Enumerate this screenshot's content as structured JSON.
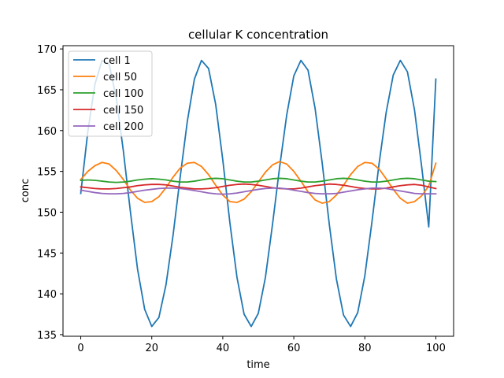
{
  "chart_data": {
    "type": "line",
    "title": "cellular K concentration",
    "xlabel": "time",
    "ylabel": "conc",
    "xlim": [
      -5,
      105
    ],
    "ylim": [
      134.8,
      170.4
    ],
    "xticks": [
      0,
      20,
      40,
      60,
      80,
      100
    ],
    "yticks": [
      135,
      140,
      145,
      150,
      155,
      160,
      165,
      170
    ],
    "grid": false,
    "legend_position": "top-left",
    "x": [
      0,
      2,
      4,
      6,
      8,
      10,
      12,
      14,
      16,
      18,
      20,
      22,
      24,
      26,
      28,
      30,
      32,
      34,
      36,
      38,
      40,
      42,
      44,
      46,
      48,
      50,
      52,
      54,
      56,
      58,
      60,
      62,
      64,
      66,
      68,
      70,
      72,
      74,
      76,
      78,
      80,
      82,
      84,
      86,
      88,
      90,
      92,
      94,
      96,
      98,
      100
    ],
    "series": [
      {
        "name": "cell 1",
        "color": "#1f77b4",
        "values": [
          152.3,
          159.9,
          165.7,
          168.6,
          168.1,
          164.0,
          157.5,
          150.0,
          143.0,
          138.1,
          136.0,
          137.1,
          141.1,
          147.2,
          154.3,
          161.1,
          166.3,
          168.6,
          167.6,
          163.2,
          156.4,
          148.7,
          142.0,
          137.5,
          136.0,
          137.6,
          142.0,
          148.5,
          155.5,
          161.9,
          166.7,
          168.6,
          167.4,
          162.7,
          156.0,
          148.5,
          141.8,
          137.4,
          136.0,
          137.7,
          142.2,
          148.8,
          155.9,
          162.2,
          166.8,
          168.6,
          167.2,
          162.5,
          155.6,
          148.2,
          166.3
        ]
      },
      {
        "name": "cell 50",
        "color": "#ff7f0e",
        "values": [
          154.0,
          155.0,
          155.7,
          156.1,
          155.9,
          155.1,
          154.0,
          152.7,
          151.7,
          151.2,
          151.3,
          151.9,
          153.0,
          154.3,
          155.4,
          156.0,
          156.1,
          155.6,
          154.6,
          153.3,
          152.1,
          151.3,
          151.2,
          151.6,
          152.5,
          153.7,
          154.9,
          155.8,
          156.2,
          155.9,
          155.0,
          153.8,
          152.5,
          151.5,
          151.1,
          151.3,
          152.1,
          153.3,
          154.6,
          155.6,
          156.1,
          156.0,
          155.3,
          154.1,
          152.8,
          151.7,
          151.1,
          151.3,
          152.0,
          153.2,
          156.0
        ]
      },
      {
        "name": "cell 100",
        "color": "#2ca02c",
        "values": [
          153.9,
          153.95,
          153.9,
          153.8,
          153.7,
          153.65,
          153.7,
          153.8,
          153.95,
          154.05,
          154.1,
          154.05,
          153.95,
          153.8,
          153.7,
          153.7,
          153.8,
          153.95,
          154.1,
          154.15,
          154.1,
          153.95,
          153.8,
          153.7,
          153.7,
          153.8,
          153.95,
          154.1,
          154.15,
          154.1,
          153.95,
          153.8,
          153.7,
          153.7,
          153.8,
          153.95,
          154.1,
          154.15,
          154.1,
          153.95,
          153.8,
          153.7,
          153.7,
          153.8,
          153.95,
          154.1,
          154.15,
          154.1,
          153.95,
          153.8,
          153.75
        ]
      },
      {
        "name": "cell 150",
        "color": "#d62728",
        "values": [
          153.1,
          153.0,
          152.9,
          152.85,
          152.85,
          152.9,
          153.0,
          153.1,
          153.25,
          153.35,
          153.4,
          153.4,
          153.35,
          153.2,
          153.05,
          152.95,
          152.85,
          152.85,
          152.9,
          153.0,
          153.15,
          153.3,
          153.4,
          153.45,
          153.4,
          153.3,
          153.15,
          153.0,
          152.9,
          152.85,
          152.85,
          152.95,
          153.1,
          153.25,
          153.35,
          153.45,
          153.4,
          153.3,
          153.15,
          153.0,
          152.9,
          152.85,
          152.85,
          152.95,
          153.1,
          153.25,
          153.35,
          153.4,
          153.3,
          153.1,
          152.9
        ]
      },
      {
        "name": "cell 200",
        "color": "#9467bd",
        "values": [
          152.7,
          152.55,
          152.4,
          152.3,
          152.25,
          152.25,
          152.3,
          152.4,
          152.55,
          152.7,
          152.8,
          152.9,
          152.95,
          152.95,
          152.9,
          152.8,
          152.65,
          152.5,
          152.35,
          152.25,
          152.2,
          152.25,
          152.35,
          152.5,
          152.65,
          152.8,
          152.9,
          152.95,
          152.95,
          152.85,
          152.7,
          152.55,
          152.4,
          152.3,
          152.25,
          152.25,
          152.3,
          152.45,
          152.6,
          152.75,
          152.85,
          152.95,
          152.95,
          152.9,
          152.75,
          152.6,
          152.45,
          152.3,
          152.25,
          152.25,
          152.25
        ]
      }
    ]
  }
}
